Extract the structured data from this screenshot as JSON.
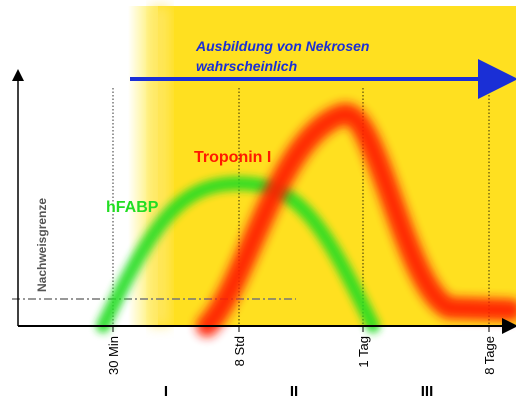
{
  "chart_data": {
    "type": "line",
    "title": "",
    "xlabel": "",
    "ylabel": "Nachweisgrenze",
    "x_ticks": [
      "30 Min",
      "8 Std",
      "1 Tag",
      "8 Tage"
    ],
    "phases": [
      "I",
      "II",
      "III"
    ],
    "annotation": {
      "line1": "Ausbildung von Nekrosen",
      "line2": "wahrscheinlich"
    },
    "series": [
      {
        "name": "hFABP",
        "color": "#22dd22",
        "x_start": "30 Min",
        "x_peak": "8 Std",
        "x_end": "1 Tag",
        "relative_peak_height": 0.62
      },
      {
        "name": "Troponin I",
        "color": "#ff1a00",
        "x_start": "8 Std",
        "x_peak": "1 Tag",
        "x_end": "8 Tage",
        "relative_peak_height": 0.92
      }
    ],
    "colors": {
      "necrosis_zone": "#ffe020",
      "arrow": "#1a2fd6",
      "axis": "#000000",
      "detection_limit_line": "#777777",
      "gridlines": "#000000"
    },
    "grid": "vertical dotted lines at ticks",
    "legend": "none (series labels placed on curves)"
  }
}
